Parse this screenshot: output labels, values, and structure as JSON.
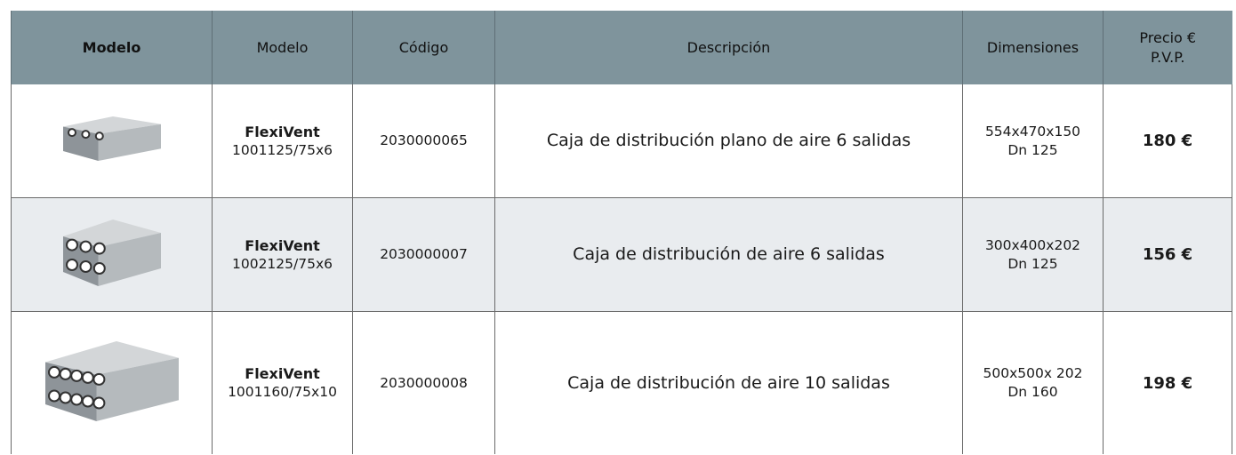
{
  "table": {
    "header": [
      "Modelo",
      "Modelo",
      "Código",
      "Descripción",
      "Dimensiones",
      [
        "Precio €",
        "P.V.P."
      ]
    ],
    "rows": [
      {
        "name": "FlexiVent",
        "model": "1001125/75x6",
        "code": "2030000065",
        "description": "Caja de distribución plano de aire 6 salidas",
        "dimensions": [
          "554x470x150",
          "Dn 125"
        ],
        "price": "180 €"
      },
      {
        "name": "FlexiVent",
        "model": "1002125/75x6",
        "code": "2030000007",
        "description": "Caja de distribución de aire 6 salidas",
        "dimensions": [
          "300x400x202",
          "Dn 125"
        ],
        "price": "156 €"
      },
      {
        "name": "FlexiVent",
        "model": "1001160/75x10",
        "code": "2030000008",
        "description": "Caja de distribución de aire 10 salidas",
        "dimensions": [
          "500x500x 202",
          "Dn 160"
        ],
        "price": "198 €"
      }
    ]
  }
}
